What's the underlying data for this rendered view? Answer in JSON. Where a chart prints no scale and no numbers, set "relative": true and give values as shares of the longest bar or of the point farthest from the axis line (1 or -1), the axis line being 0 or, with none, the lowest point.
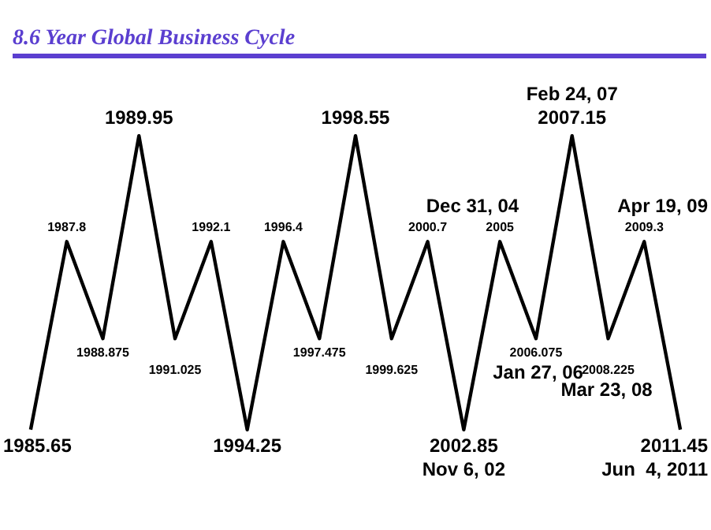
{
  "chart_data": {
    "type": "line",
    "title": "8.6 Year Global Business Cycle",
    "relative": true,
    "marker": "none",
    "line_style": "solid",
    "categories": [
      "1985.65",
      "1987.8",
      "1988.875",
      "1989.95",
      "1991.025",
      "1992.1",
      "1994.25",
      "1996.4",
      "1997.475",
      "1998.55",
      "1999.625",
      "2000.7",
      "2002.85",
      "2005",
      "2006.075",
      "2007.15",
      "2008.225",
      "2009.3",
      "2011.45"
    ],
    "series": [
      {
        "color": "#000000",
        "values": [
          0,
          0.64,
          0.31,
          1,
          0.31,
          0.64,
          0,
          0.64,
          0.31,
          1,
          0.31,
          0.64,
          0,
          0.64,
          0.31,
          1,
          0.31,
          0.64,
          0
        ]
      }
    ],
    "annotations": [
      {
        "text": "Nov 6, 02",
        "x": "2002.85",
        "y": 0
      },
      {
        "text": "Dec 31, 04",
        "x": "2005",
        "y": 0.64
      },
      {
        "text": "Jan 27, 06",
        "x": "2006.075",
        "y": 0.31
      },
      {
        "text": "Feb 24, 07",
        "x": "2007.15",
        "y": 1
      },
      {
        "text": "Mar 23, 08",
        "x": "2008.225",
        "y": 0.31
      },
      {
        "text": "Apr 19, 09",
        "x": "2009.3",
        "y": 0.64
      },
      {
        "text": "Jun  4, 2011",
        "x": "2011.45",
        "y": 0
      }
    ]
  }
}
